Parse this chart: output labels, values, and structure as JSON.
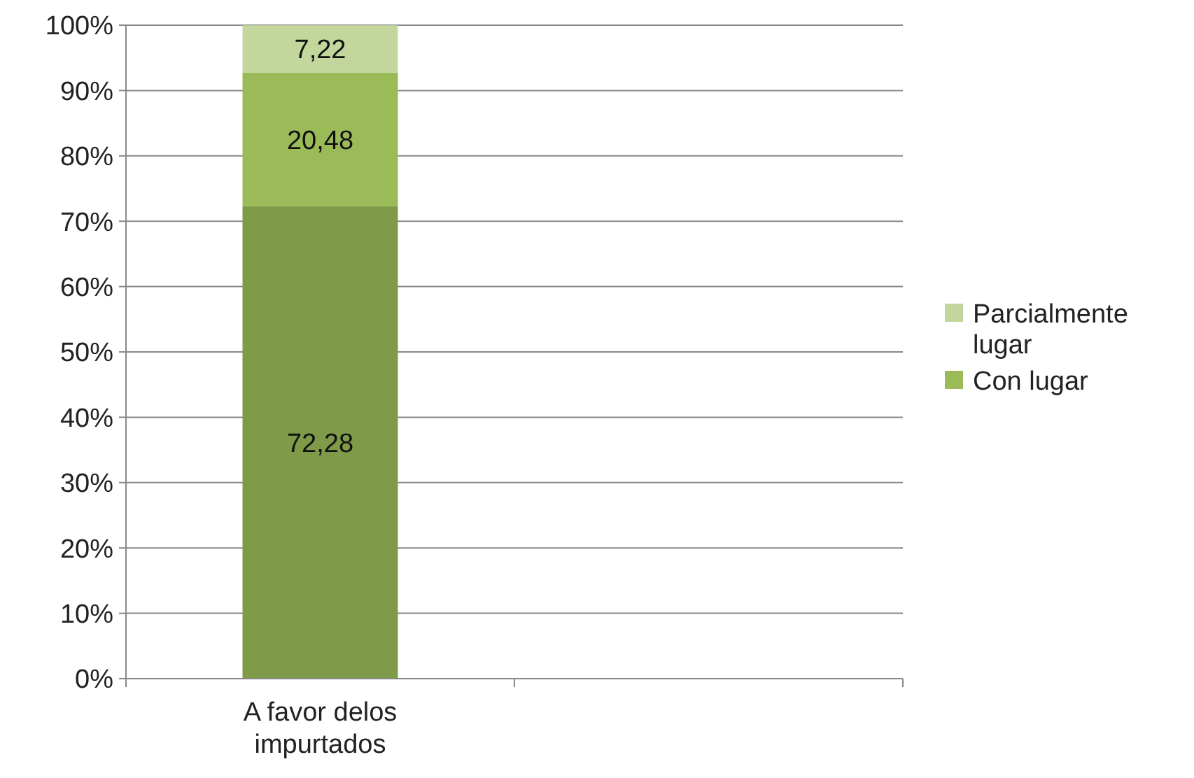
{
  "chart_data": {
    "type": "bar",
    "stacked": true,
    "categories": [
      "A favor delos impurtados",
      null
    ],
    "series": [
      {
        "color": "#7f9a48",
        "values": [
          72.28,
          null
        ],
        "value_labels": [
          "72,28",
          null
        ]
      },
      {
        "name": "Con lugar",
        "color": "#9bbb59",
        "values": [
          20.48,
          null
        ],
        "value_labels": [
          "20,48",
          null
        ]
      },
      {
        "name": "Parcialmente lugar",
        "color": "#c3d69b",
        "values": [
          7.22,
          null
        ],
        "value_labels": [
          "7,22",
          null
        ]
      }
    ],
    "ylim": [
      0,
      100
    ],
    "yticks": [
      {
        "value": 0,
        "label": "0%"
      },
      {
        "value": 10,
        "label": "10%"
      },
      {
        "value": 20,
        "label": "20%"
      },
      {
        "value": 30,
        "label": "30%"
      },
      {
        "value": 40,
        "label": "40%"
      },
      {
        "value": 50,
        "label": "50%"
      },
      {
        "value": 60,
        "label": "60%"
      },
      {
        "value": 70,
        "label": "70%"
      },
      {
        "value": 80,
        "label": "80%"
      },
      {
        "value": 90,
        "label": "90%"
      },
      {
        "value": 100,
        "label": "100%"
      }
    ],
    "grid": "y",
    "legend": "right"
  }
}
